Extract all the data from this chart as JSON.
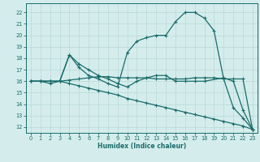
{
  "xlabel": "Humidex (Indice chaleur)",
  "bg_color": "#d4edec",
  "grid_color": "#b8d8d6",
  "line_color": "#1a6b6b",
  "xlim": [
    -0.5,
    23.5
  ],
  "ylim": [
    11.5,
    22.8
  ],
  "yticks": [
    12,
    13,
    14,
    15,
    16,
    17,
    18,
    19,
    20,
    21,
    22
  ],
  "xticks": [
    0,
    1,
    2,
    3,
    4,
    5,
    6,
    7,
    8,
    9,
    10,
    11,
    12,
    13,
    14,
    15,
    16,
    17,
    18,
    19,
    20,
    21,
    22,
    23
  ],
  "lines": [
    {
      "x": [
        0,
        1,
        2,
        3,
        4,
        5,
        6,
        7,
        8,
        9,
        10,
        11,
        12,
        13,
        14,
        15,
        16,
        17,
        18,
        20,
        21,
        22,
        23
      ],
      "y": [
        16,
        16,
        16,
        16,
        18.3,
        17.5,
        17.0,
        16.5,
        16.2,
        15.8,
        15.5,
        16.0,
        16.3,
        16.5,
        16.5,
        16.0,
        16.0,
        16.0,
        16.0,
        16.3,
        16.0,
        13.5,
        11.8
      ]
    },
    {
      "x": [
        0,
        1,
        2,
        3,
        4,
        5,
        6,
        7,
        8,
        9,
        10,
        11,
        12,
        13,
        14,
        15,
        16,
        17,
        18,
        19,
        20,
        21,
        22,
        23
      ],
      "y": [
        16,
        16,
        16,
        16,
        18.3,
        17.2,
        16.5,
        16.2,
        15.8,
        15.5,
        18.5,
        19.5,
        19.8,
        20.0,
        20.0,
        21.2,
        22.0,
        22.0,
        21.5,
        20.4,
        16.2,
        13.7,
        12.8,
        11.8
      ]
    },
    {
      "x": [
        0,
        1,
        2,
        3,
        4,
        5,
        6,
        7,
        8,
        9,
        10,
        11,
        12,
        13,
        14,
        15,
        16,
        17,
        18,
        19,
        20,
        21,
        22,
        23
      ],
      "y": [
        16,
        16,
        15.8,
        16,
        15.8,
        15.6,
        15.4,
        15.2,
        15.0,
        14.8,
        14.5,
        14.3,
        14.1,
        13.9,
        13.7,
        13.5,
        13.3,
        13.1,
        12.9,
        12.7,
        12.5,
        12.3,
        12.1,
        11.8
      ]
    },
    {
      "x": [
        0,
        1,
        2,
        3,
        4,
        5,
        6,
        7,
        8,
        9,
        10,
        11,
        12,
        13,
        14,
        15,
        16,
        17,
        18,
        19,
        20,
        21,
        22,
        23
      ],
      "y": [
        16,
        16,
        16,
        16,
        16.1,
        16.2,
        16.3,
        16.4,
        16.4,
        16.3,
        16.3,
        16.3,
        16.3,
        16.2,
        16.2,
        16.2,
        16.2,
        16.3,
        16.3,
        16.3,
        16.2,
        16.2,
        16.2,
        11.8
      ]
    }
  ]
}
